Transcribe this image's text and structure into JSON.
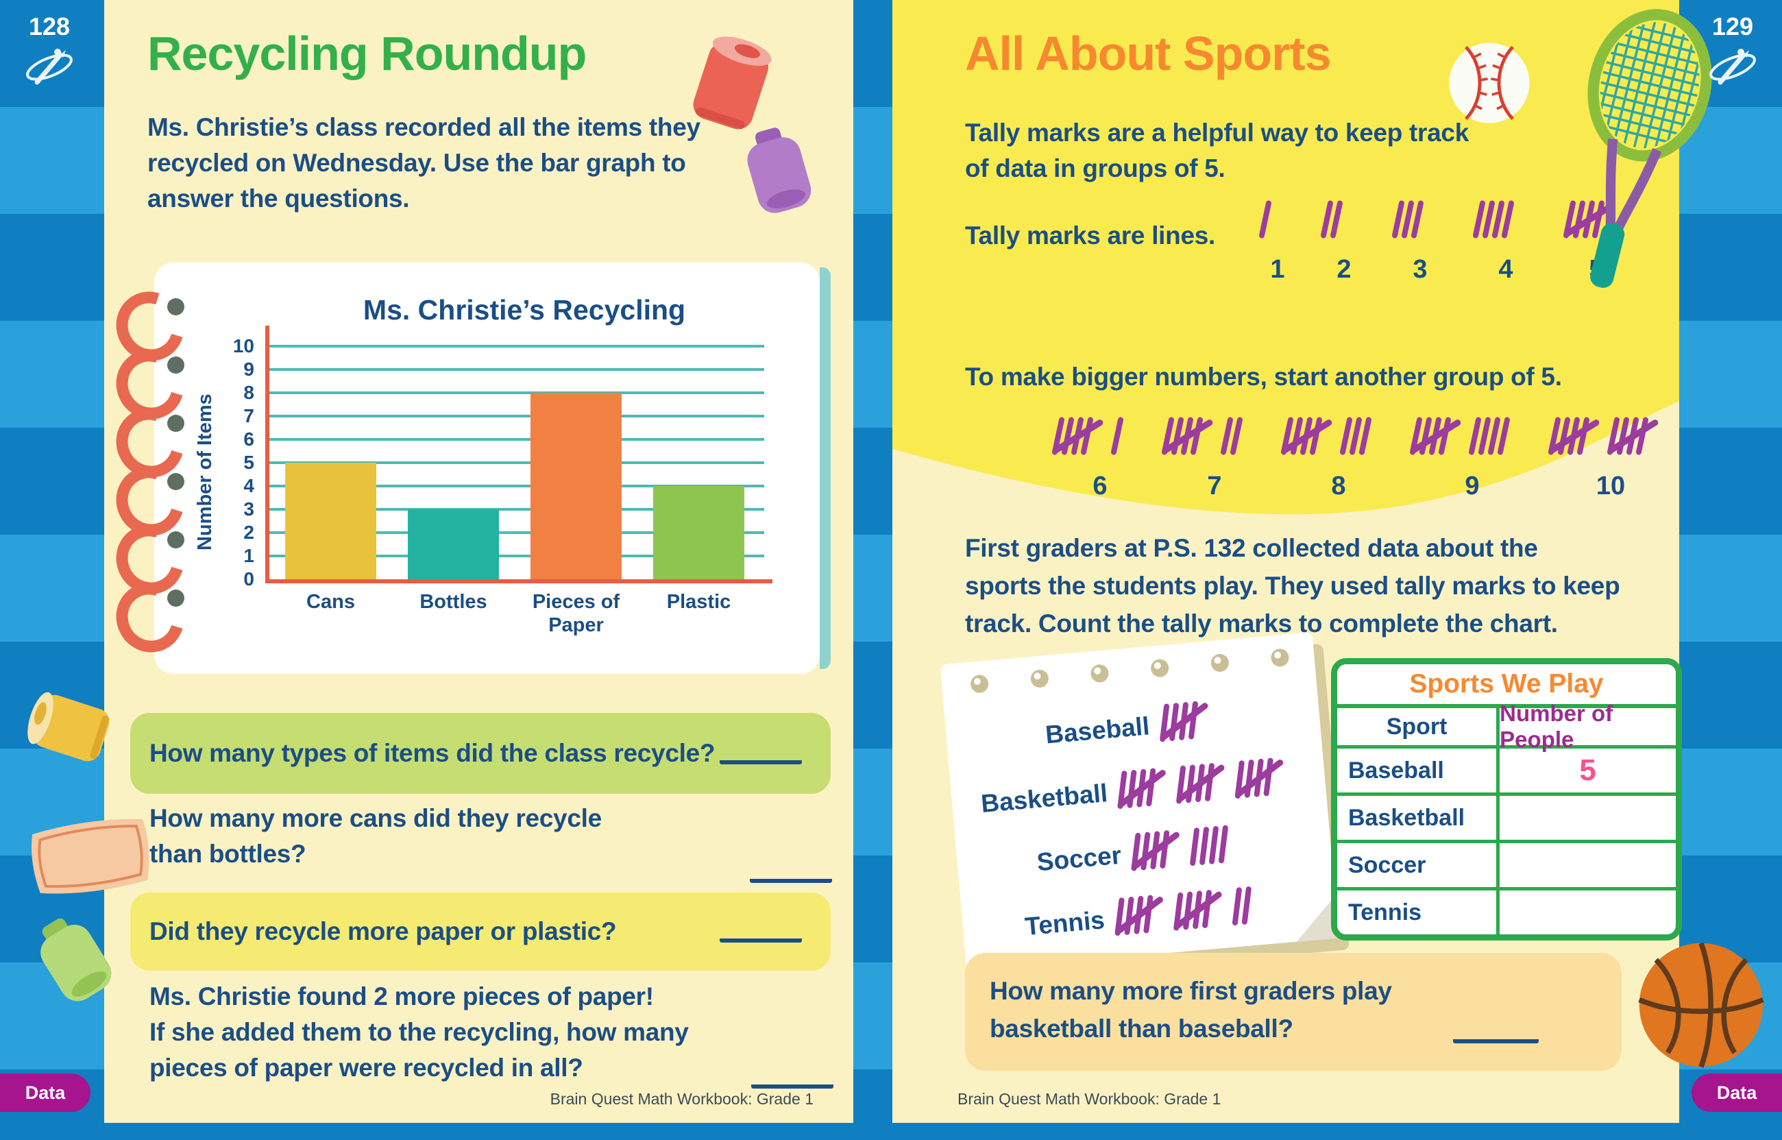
{
  "book_footer": "Brain Quest Math Workbook: Grade 1",
  "colors": {
    "stripe_dark": "#0F7FC1",
    "stripe_light": "#2AA1DB",
    "page_pale_yellow": "#FBF2C4",
    "page_bright_yellow": "#F9EB4F",
    "title_green": "#33B04A",
    "title_orange": "#F6892F",
    "text_navy": "#1A4E86",
    "tally_purple": "#9C3C9E",
    "table_green": "#2CA84D",
    "table_header_purple": "#9C2B8F",
    "handwriting_pink": "#F4538A",
    "tab_purple": "#A6148E",
    "axis_orange": "#E85C45",
    "gridline_teal": "#4FB9B4",
    "question_box_green": "#C6DD72",
    "question_box_yellow": "#F5EB72",
    "question_box_orange": "#FADF9E"
  },
  "left_page": {
    "page_number": "128",
    "tab": "Data",
    "title": "Recycling Roundup",
    "intro": [
      "Ms. Christie’s class recorded all the items they",
      "recycled on Wednesday. Use the bar graph to",
      "answer the questions."
    ],
    "question1": "How many types of items did the class recycle?",
    "question2": [
      "How many more cans did they recycle",
      "than bottles?"
    ],
    "question3": "Did they recycle more paper or plastic?",
    "question4": [
      "Ms. Christie found 2 more pieces of paper!",
      "If she added them to the recycling, how many",
      "pieces of paper were recycled in all?"
    ],
    "footer": "Brain Quest Math Workbook: Grade 1",
    "decorations": [
      "red-can",
      "purple-bottle",
      "yellow-can",
      "paper-sheet",
      "green-bottle",
      "binder-rings"
    ]
  },
  "chart_data": {
    "type": "bar",
    "title": "Ms. Christie’s Recycling",
    "categories": [
      "Cans",
      "Bottles",
      "Pieces of Paper",
      "Plastic"
    ],
    "values": [
      5,
      3,
      8,
      4
    ],
    "bar_colors": [
      "#E9C23B",
      "#22B3A1",
      "#F08142",
      "#8DC550"
    ],
    "xlabel": "",
    "ylabel": "Number of Items",
    "ylim": [
      0,
      10
    ],
    "yticks": [
      0,
      1,
      2,
      3,
      4,
      5,
      6,
      7,
      8,
      9,
      10
    ],
    "grid": true,
    "legend": false
  },
  "right_page": {
    "page_number": "129",
    "tab": "Data",
    "title": "All About Sports",
    "intro_bold": "Tally marks",
    "intro_rest": " are a helpful way to keep track",
    "intro_line2": "of data in groups of 5.",
    "lesson1_label": "Tally marks are lines.",
    "lesson1_counts": [
      1,
      2,
      3,
      4,
      5
    ],
    "lesson2_text": "To make bigger numbers, start another group of 5.",
    "lesson2_counts": [
      6,
      7,
      8,
      9,
      10
    ],
    "paragraph": [
      "First graders at P.S. 132 collected data about the",
      "sports the students play. They used tally marks to keep",
      "track. Count the tally marks to complete the chart."
    ],
    "notepad": {
      "rows": [
        {
          "label": "Baseball",
          "count": 5
        },
        {
          "label": "Basketball",
          "count": 15
        },
        {
          "label": "Soccer",
          "count": 9
        },
        {
          "label": "Tennis",
          "count": 12
        }
      ]
    },
    "table": {
      "title": "Sports We Play",
      "headers": [
        "Sport",
        "Number of People"
      ],
      "rows": [
        {
          "sport": "Baseball",
          "value": "5"
        },
        {
          "sport": "Basketball",
          "value": ""
        },
        {
          "sport": "Soccer",
          "value": ""
        },
        {
          "sport": "Tennis",
          "value": ""
        }
      ]
    },
    "question": [
      "How many more first graders play",
      "basketball than baseball?"
    ],
    "footer": "Brain Quest Math Workbook: Grade 1",
    "decorations": [
      "baseball",
      "tennis-racket",
      "basketball"
    ]
  }
}
